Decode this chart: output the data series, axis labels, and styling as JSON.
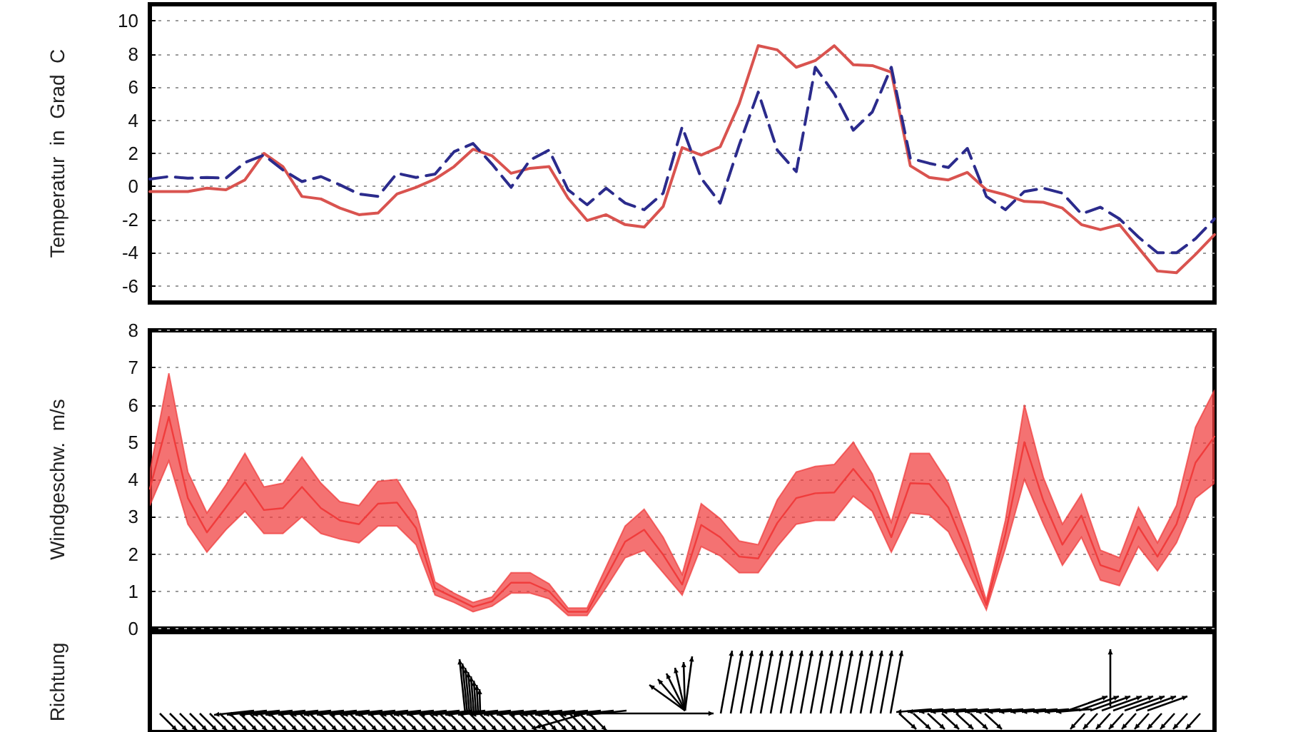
{
  "chart_data": [
    {
      "type": "line",
      "ylabel": "Temperatur  in  Grad  C",
      "categories": [
        null,
        null,
        null,
        null,
        null,
        null,
        null,
        null,
        null,
        null,
        null,
        null,
        null,
        null,
        null,
        null,
        null,
        null,
        null,
        null,
        null,
        null,
        null,
        null,
        null,
        null,
        null,
        null,
        null,
        null,
        null,
        null,
        null,
        null,
        null,
        null,
        null,
        null,
        null,
        null,
        null,
        null,
        null,
        null,
        null,
        null,
        null,
        null,
        null,
        null,
        null,
        null,
        null,
        null,
        null,
        null,
        null
      ],
      "ylim": [
        -7,
        11
      ],
      "yticks": [
        -6,
        -4,
        -2,
        0,
        2,
        4,
        6,
        8,
        10
      ],
      "grid": "y",
      "tick_labels": "y",
      "marker": "none",
      "series": [
        {
          "color": "#d9534f",
          "line_style": "solid",
          "values": [
            -0.3,
            -0.3,
            -0.3,
            -0.1,
            -0.2,
            0.4,
            2.0,
            1.2,
            -0.6,
            -0.75,
            -1.3,
            -1.7,
            -1.6,
            -0.45,
            -0.05,
            0.45,
            1.2,
            2.25,
            1.85,
            0.8,
            1.1,
            1.2,
            -0.7,
            -2.05,
            -1.7,
            -2.3,
            -2.45,
            -1.2,
            2.35,
            1.9,
            2.4,
            5.0,
            8.5,
            8.25,
            7.2,
            7.6,
            8.5,
            7.35,
            7.3,
            6.9,
            1.25,
            0.55,
            0.4,
            0.85,
            -0.2,
            -0.5,
            -0.9,
            -0.95,
            -1.3,
            -2.3,
            -2.6,
            -2.3,
            -3.7,
            -5.1,
            -5.2,
            -4.1,
            -2.9
          ]
        },
        {
          "color": "#2b2b8c",
          "line_style": "dashed",
          "values": [
            0.45,
            0.6,
            0.5,
            0.55,
            0.5,
            1.45,
            1.9,
            1.0,
            0.3,
            0.6,
            0.1,
            -0.45,
            -0.6,
            0.8,
            0.55,
            0.75,
            2.1,
            2.6,
            1.35,
            -0.05,
            1.6,
            2.2,
            -0.2,
            -1.1,
            -0.1,
            -1.0,
            -1.4,
            -0.4,
            3.6,
            0.5,
            -1.0,
            2.5,
            5.7,
            2.2,
            0.9,
            7.2,
            5.6,
            3.4,
            4.5,
            7.2,
            1.7,
            1.4,
            1.15,
            2.3,
            -0.6,
            -1.4,
            -0.3,
            -0.1,
            -0.4,
            -1.65,
            -1.25,
            -1.95,
            -3.05,
            -4.0,
            -4.0,
            -3.15,
            -1.95
          ]
        }
      ]
    },
    {
      "type": "line",
      "ylabel": "Windgeschw.  m/s",
      "categories": [
        null,
        null,
        null,
        null,
        null,
        null,
        null,
        null,
        null,
        null,
        null,
        null,
        null,
        null,
        null,
        null,
        null,
        null,
        null,
        null,
        null,
        null,
        null,
        null,
        null,
        null,
        null,
        null,
        null,
        null,
        null,
        null,
        null,
        null,
        null,
        null,
        null,
        null,
        null,
        null,
        null,
        null,
        null,
        null,
        null,
        null,
        null,
        null,
        null,
        null,
        null,
        null,
        null,
        null,
        null,
        null,
        null
      ],
      "ylim": [
        0,
        8
      ],
      "yticks": [
        0,
        1,
        2,
        3,
        4,
        5,
        6,
        7,
        8
      ],
      "grid": "y",
      "tick_labels": "y",
      "marker": "none",
      "series": [
        {
          "color": "#f03c3c",
          "line_style": "solid",
          "values": [
            3.75,
            5.68,
            3.5,
            2.58,
            3.25,
            3.93,
            3.18,
            3.23,
            3.8,
            3.23,
            2.9,
            2.8,
            3.35,
            3.38,
            2.7,
            1.08,
            0.83,
            0.58,
            0.73,
            1.23,
            1.23,
            1.0,
            0.45,
            0.45,
            1.38,
            2.33,
            2.65,
            1.98,
            1.18,
            2.78,
            2.45,
            1.93,
            1.88,
            2.83,
            3.5,
            3.63,
            3.65,
            4.28,
            3.65,
            2.45,
            3.9,
            3.88,
            3.25,
            2.0,
            0.63,
            2.53,
            5.0,
            3.43,
            2.25,
            3.03,
            1.7,
            1.53,
            2.73,
            1.93,
            2.8,
            4.45,
            5.15
          ],
          "lower": [
            3.3,
            4.5,
            2.8,
            2.05,
            2.65,
            3.15,
            2.55,
            2.55,
            3.0,
            2.55,
            2.4,
            2.3,
            2.75,
            2.75,
            2.25,
            0.9,
            0.7,
            0.45,
            0.6,
            0.95,
            0.95,
            0.8,
            0.35,
            0.35,
            1.1,
            1.9,
            2.1,
            1.5,
            0.9,
            2.2,
            1.95,
            1.5,
            1.5,
            2.2,
            2.8,
            2.9,
            2.9,
            3.55,
            3.15,
            2.05,
            3.1,
            3.05,
            2.6,
            1.55,
            0.5,
            2.15,
            4.0,
            2.8,
            1.7,
            2.45,
            1.3,
            1.15,
            2.2,
            1.55,
            2.3,
            3.5,
            3.9
          ],
          "upper": [
            4.2,
            6.85,
            4.2,
            3.1,
            3.85,
            4.7,
            3.8,
            3.9,
            4.6,
            3.9,
            3.4,
            3.3,
            3.95,
            4.0,
            3.15,
            1.25,
            0.95,
            0.7,
            0.85,
            1.5,
            1.5,
            1.2,
            0.55,
            0.55,
            1.65,
            2.75,
            3.2,
            2.45,
            1.45,
            3.35,
            2.95,
            2.35,
            2.25,
            3.45,
            4.2,
            4.35,
            4.4,
            5.0,
            4.15,
            2.85,
            4.7,
            4.7,
            3.9,
            2.45,
            0.75,
            2.9,
            6.0,
            4.05,
            2.8,
            3.6,
            2.1,
            1.9,
            3.25,
            2.3,
            3.3,
            5.4,
            6.4
          ]
        }
      ]
    },
    {
      "type": "other",
      "ylabel": "Richtung"
    }
  ]
}
